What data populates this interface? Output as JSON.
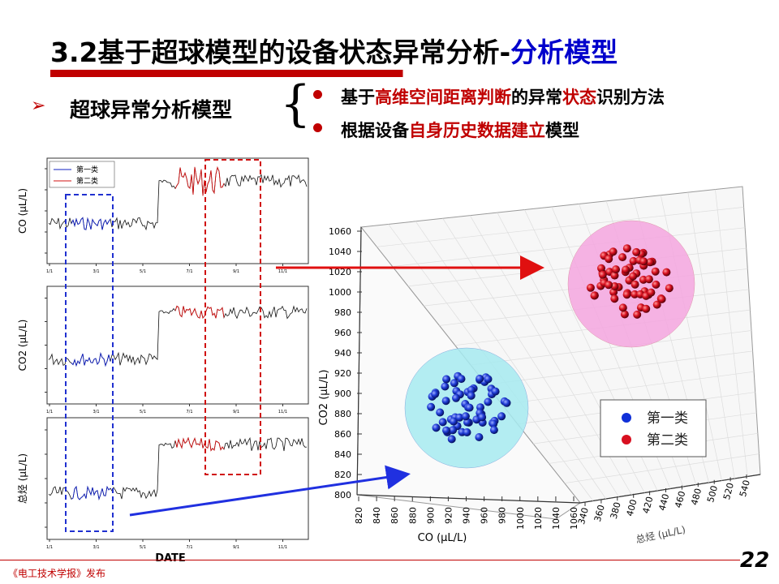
{
  "title": {
    "prefix": "3.2基于超球模型的设备状态异常分析-",
    "highlight": "分析模型"
  },
  "subhead": "超球异常分析模型",
  "bullet_glyph": "➢",
  "methods": [
    {
      "before": "基于",
      "red": "高维空间距离判断",
      "middle": "的异常",
      "red2": "状态",
      "after": "识别方法"
    },
    {
      "before": "根据设备",
      "red": "自身历史数据建立",
      "after": "模型"
    }
  ],
  "left_panels": {
    "ylabels": [
      "CO (μL/L)",
      "CO2 (μL/L)",
      "总烃 (μL/L)"
    ],
    "xlabel": "DATE",
    "legend": [
      "第一类",
      "第二类"
    ],
    "x_ticks": [
      "1/1",
      "3/1",
      "5/1",
      "7/1",
      "9/1",
      "11/1"
    ]
  },
  "chart_data": {
    "type": "scatter",
    "title": "",
    "x_axis": {
      "label": "CO (μL/L)",
      "ticks": [
        820,
        840,
        860,
        880,
        900,
        920,
        940,
        960,
        980,
        1000,
        1020,
        1040,
        1060
      ]
    },
    "y_axis": {
      "label": "CO2 (μL/L)",
      "ticks": [
        800,
        820,
        840,
        860,
        880,
        900,
        920,
        940,
        960,
        980,
        1000,
        1020,
        1040,
        1060
      ]
    },
    "z_axis": {
      "label": "总烃 (μL/L)",
      "ticks": [
        340,
        360,
        380,
        400,
        420,
        440,
        460,
        480,
        500,
        520,
        540
      ]
    },
    "legend": [
      "第一类",
      "第二类"
    ],
    "series_colors": [
      "#1030d8",
      "#d81020"
    ]
  },
  "footer": "《电工技术学报》发布",
  "page_number": "22"
}
